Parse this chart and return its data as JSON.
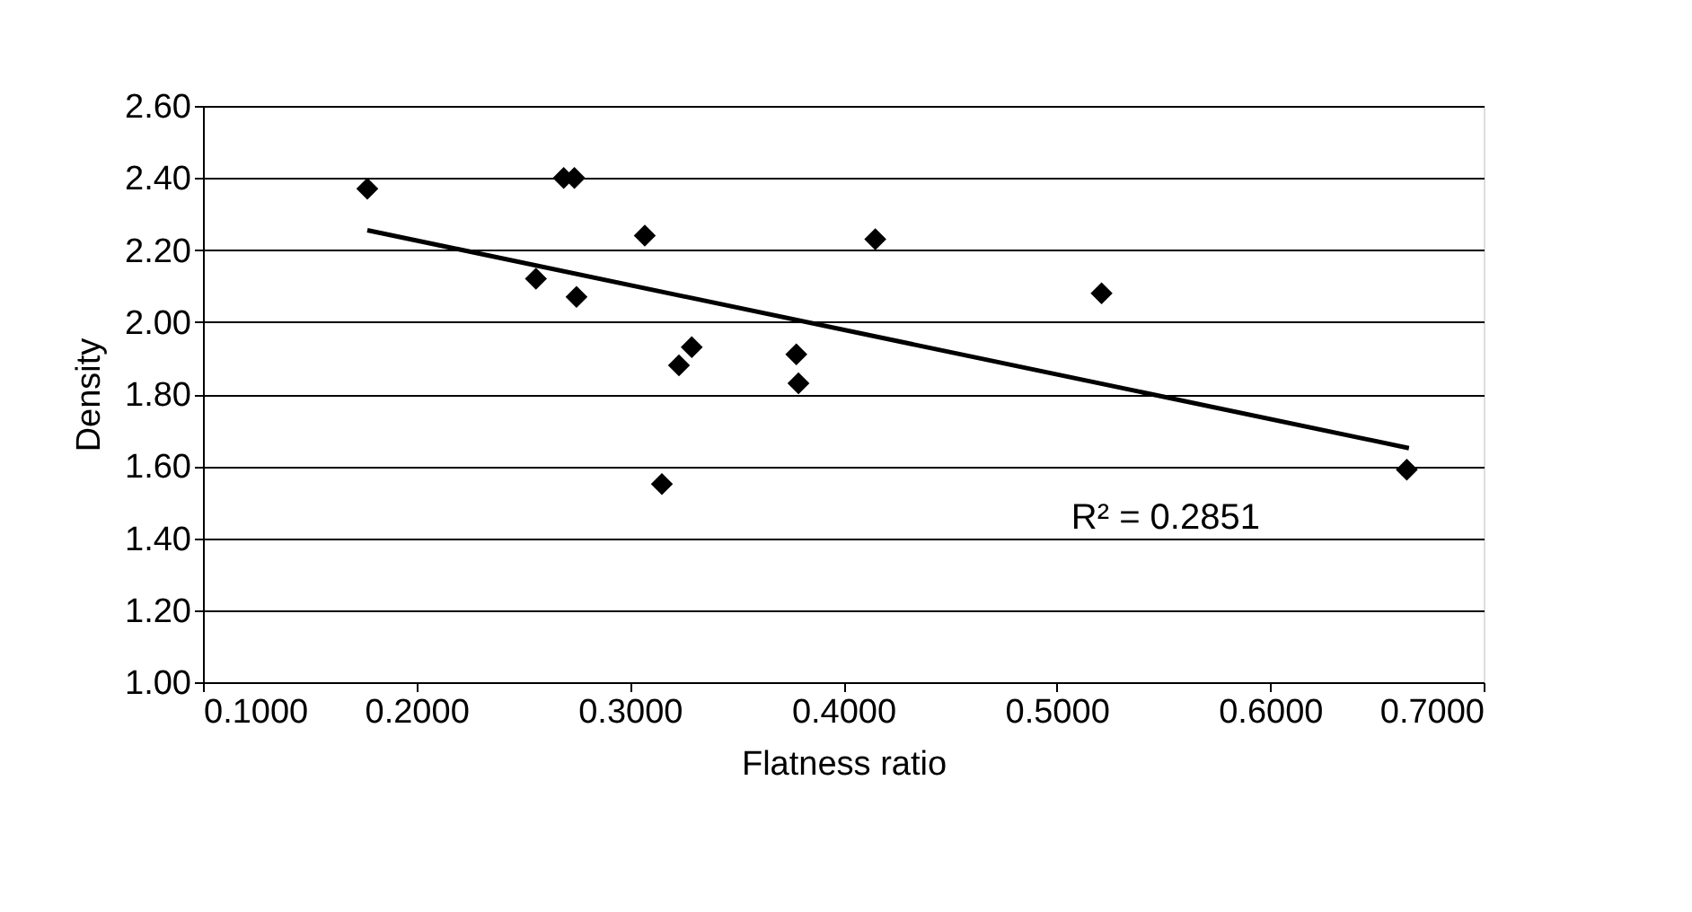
{
  "chart_data": {
    "type": "scatter",
    "xlabel": "Flatness ratio",
    "ylabel": "Density",
    "xlim": [
      0.1,
      0.7
    ],
    "ylim": [
      1.0,
      2.6
    ],
    "xticks": [
      {
        "value": 0.1,
        "label": "0.1000"
      },
      {
        "value": 0.2,
        "label": "0.2000"
      },
      {
        "value": 0.3,
        "label": "0.3000"
      },
      {
        "value": 0.4,
        "label": "0.4000"
      },
      {
        "value": 0.5,
        "label": "0.5000"
      },
      {
        "value": 0.6,
        "label": "0.6000"
      },
      {
        "value": 0.7,
        "label": "0.7000"
      }
    ],
    "yticks": [
      {
        "value": 1.0,
        "label": "1.00"
      },
      {
        "value": 1.2,
        "label": "1.20"
      },
      {
        "value": 1.4,
        "label": "1.40"
      },
      {
        "value": 1.6,
        "label": "1.60"
      },
      {
        "value": 1.8,
        "label": "1.80"
      },
      {
        "value": 2.0,
        "label": "2.00"
      },
      {
        "value": 2.2,
        "label": "2.20"
      },
      {
        "value": 2.4,
        "label": "2.40"
      },
      {
        "value": 2.6,
        "label": "2.60"
      }
    ],
    "grid": "y",
    "marker": "diamond",
    "series": [
      {
        "color": "#000000",
        "x": [
          0.177,
          0.269,
          0.274,
          0.307,
          0.415,
          0.256,
          0.275,
          0.329,
          0.323,
          0.378,
          0.379,
          0.315,
          0.521,
          0.664
        ],
        "values": [
          2.37,
          2.4,
          2.4,
          2.24,
          2.23,
          2.12,
          2.07,
          1.93,
          1.88,
          1.91,
          1.83,
          1.55,
          2.08,
          1.59
        ]
      },
      {
        "type": "line",
        "marker": "none",
        "color": "#000000",
        "x": [
          0.177,
          0.665
        ],
        "values": [
          2.255,
          1.65
        ]
      }
    ],
    "annotations": [
      "R² = 0.2851"
    ]
  }
}
